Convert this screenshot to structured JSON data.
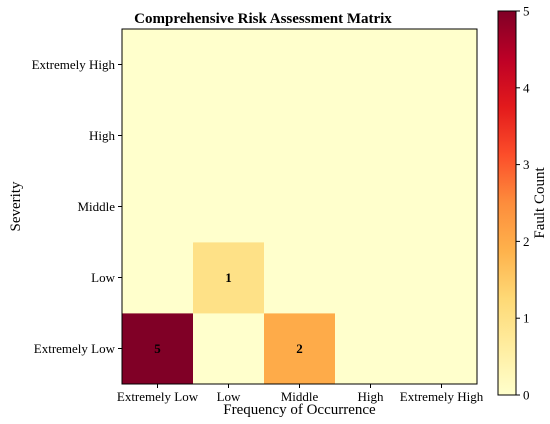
{
  "chart_data": {
    "type": "heatmap",
    "title": "Comprehensive Risk Assessment Matrix",
    "xlabel": "Frequency of Occurrence",
    "ylabel": "Severity",
    "x_categories": [
      "Extremely Low",
      "Low",
      "Middle",
      "High",
      "Extremely High"
    ],
    "y_categories": [
      "Extremely Low",
      "Low",
      "Middle",
      "High",
      "Extremely High"
    ],
    "values": [
      [
        5,
        0,
        2,
        0,
        0
      ],
      [
        0,
        1,
        0,
        0,
        0
      ],
      [
        0,
        0,
        0,
        0,
        0
      ],
      [
        0,
        0,
        0,
        0,
        0
      ],
      [
        0,
        0,
        0,
        0,
        0
      ]
    ],
    "cell_labels": [
      [
        "5",
        "",
        "2",
        "",
        ""
      ],
      [
        "",
        "1",
        "",
        "",
        ""
      ],
      [
        "",
        "",
        "",
        "",
        ""
      ],
      [
        "",
        "",
        "",
        "",
        ""
      ],
      [
        "",
        "",
        "",
        "",
        ""
      ]
    ],
    "colorbar": {
      "label": "Fault Count",
      "range": [
        0,
        5
      ],
      "ticks": [
        "0",
        "1",
        "2",
        "3",
        "4",
        "5"
      ],
      "colormap": [
        "#ffffcc",
        "#ffeda0",
        "#fed976",
        "#feb24c",
        "#fd8d3c",
        "#fc4e2a",
        "#e31a1c",
        "#bd0026",
        "#800026"
      ]
    },
    "grid": false
  }
}
